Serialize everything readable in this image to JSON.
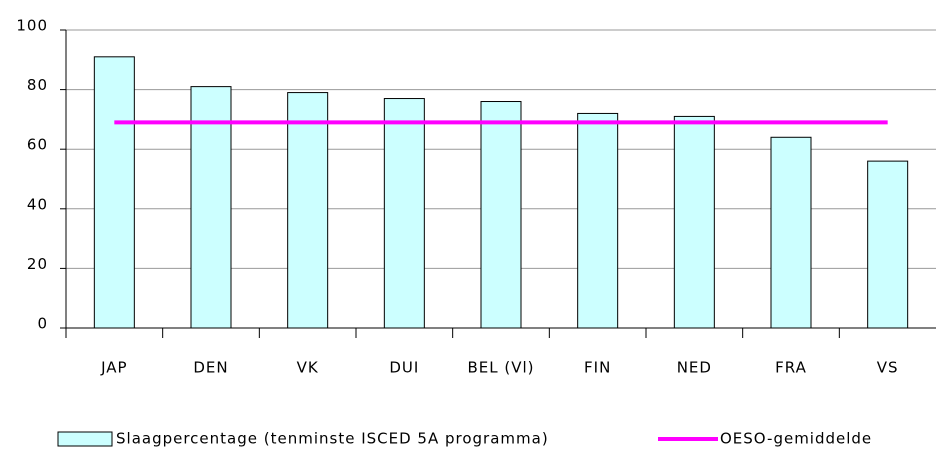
{
  "chart_data": {
    "type": "bar",
    "categories": [
      "JAP",
      "DEN",
      "VK",
      "DUI",
      "BEL (Vl)",
      "FIN",
      "NED",
      "FRA",
      "VS"
    ],
    "series": [
      {
        "name": "Slaagpercentage  (tenminste ISCED 5A programma)",
        "type": "bar",
        "color": "#ccffff",
        "values": [
          91,
          81,
          79,
          77,
          76,
          72,
          71,
          64,
          56
        ]
      },
      {
        "name": "OESO-gemiddelde",
        "type": "line",
        "color": "#ff00ff",
        "values": [
          69,
          69,
          69,
          69,
          69,
          69,
          69,
          69,
          69
        ]
      }
    ],
    "ylim": [
      0,
      100
    ],
    "yticks": [
      0,
      20,
      40,
      60,
      80,
      100
    ],
    "grid": true
  }
}
